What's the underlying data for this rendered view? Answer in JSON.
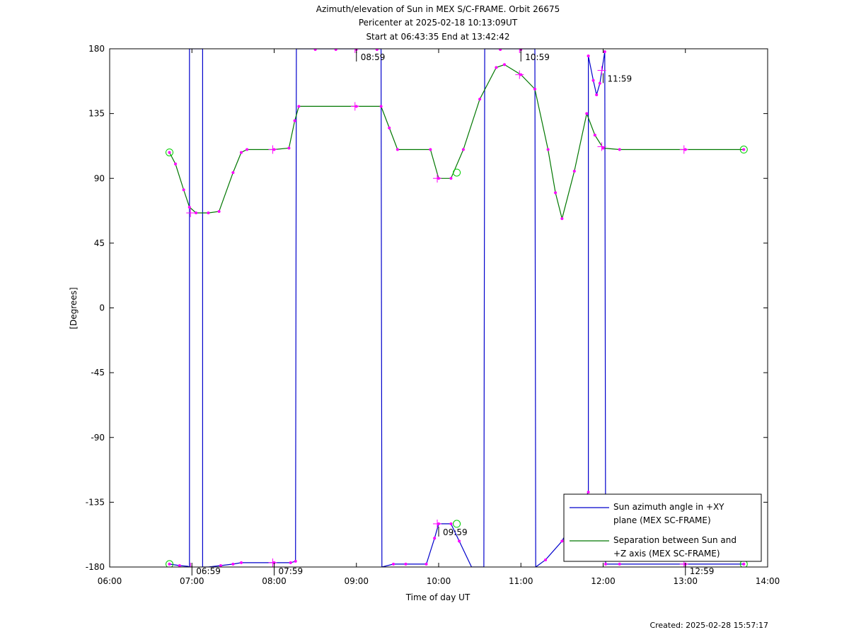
{
  "chart_data": {
    "type": "line",
    "title": "Azimuth/elevation of Sun in MEX S/C-FRAME.  Orbit 26675",
    "subtitle_1": "Pericenter at 2025-02-18 10:13:09UT",
    "subtitle_2": "Start at 06:43:35 End at 13:42:42",
    "xlabel": "Time of day UT",
    "ylabel": "[Degrees]",
    "xlim": [
      6.0,
      14.0
    ],
    "ylim": [
      -180,
      180
    ],
    "x_ticks": [
      6,
      7,
      8,
      9,
      10,
      11,
      12,
      13,
      14
    ],
    "x_tick_labels": [
      "06:00",
      "07:00",
      "08:00",
      "09:00",
      "10:00",
      "11:00",
      "12:00",
      "13:00",
      "14:00"
    ],
    "y_ticks": [
      180,
      135,
      90,
      45,
      0,
      -45,
      -90,
      -135,
      -180
    ],
    "y_tick_labels": [
      "180",
      "135",
      "90",
      "45",
      "0",
      "-45",
      "-90",
      "-135",
      "-180"
    ],
    "grid": false,
    "legend_position": "bottom-right",
    "colors": {
      "azimuth": "#0000cc",
      "separation": "#007700",
      "markers": "#ff00ff",
      "endpoints": "#00cc00"
    },
    "series": [
      {
        "name": "Sun azimuth angle in +XY plane (MEX SC-FRAME)",
        "legend_lines": [
          "Sun azimuth angle in +XY",
          "plane (MEX SC-FRAME)"
        ],
        "color": "#0000cc",
        "segments": [
          [
            [
              6.727,
              -178
            ],
            [
              6.85,
              -179
            ],
            [
              6.95,
              -179.5
            ],
            [
              6.97,
              -180
            ]
          ],
          [
            [
              6.97,
              180
            ],
            [
              7.13,
              180
            ]
          ],
          [
            [
              7.13,
              -180
            ],
            [
              7.2,
              -180
            ],
            [
              7.35,
              -179
            ],
            [
              7.5,
              -178
            ],
            [
              7.6,
              -177
            ],
            [
              8.0,
              -177
            ],
            [
              8.2,
              -177
            ],
            [
              8.26,
              -176
            ]
          ],
          [
            [
              8.27,
              180
            ],
            [
              9.3,
              180
            ]
          ],
          [
            [
              9.31,
              -180
            ],
            [
              9.45,
              -178
            ],
            [
              9.6,
              -178
            ],
            [
              9.85,
              -178
            ],
            [
              9.95,
              -160
            ],
            [
              10.0,
              -150
            ],
            [
              10.15,
              -150
            ],
            [
              10.25,
              -162
            ],
            [
              10.4,
              -180
            ],
            [
              10.55,
              -180
            ]
          ],
          [
            [
              10.56,
              180
            ],
            [
              11.17,
              180
            ]
          ],
          [
            [
              11.18,
              -180
            ],
            [
              11.3,
              -175
            ],
            [
              11.5,
              -162
            ],
            [
              11.7,
              -140
            ],
            [
              11.82,
              -128
            ]
          ],
          [
            [
              11.82,
              175
            ],
            [
              11.88,
              158
            ],
            [
              11.92,
              148
            ],
            [
              11.96,
              156
            ],
            [
              12.02,
              178
            ]
          ],
          [
            [
              12.03,
              -178
            ],
            [
              12.2,
              -178
            ],
            [
              13.0,
              -178
            ],
            [
              13.71,
              -178
            ]
          ]
        ]
      },
      {
        "name": "Separation between Sun and +Z axis (MEX SC-FRAME)",
        "legend_lines": [
          "Separation between Sun and",
          "+Z axis (MEX SC-FRAME)"
        ],
        "color": "#007700",
        "points": [
          [
            6.727,
            108
          ],
          [
            6.8,
            100
          ],
          [
            6.9,
            82
          ],
          [
            6.97,
            70
          ],
          [
            7.05,
            66
          ],
          [
            7.2,
            66
          ],
          [
            7.33,
            67
          ],
          [
            7.5,
            94
          ],
          [
            7.6,
            108
          ],
          [
            7.67,
            110
          ],
          [
            8.0,
            110
          ],
          [
            8.18,
            111
          ],
          [
            8.25,
            130
          ],
          [
            8.3,
            140
          ],
          [
            9.0,
            140
          ],
          [
            9.3,
            140
          ],
          [
            9.4,
            125
          ],
          [
            9.5,
            110
          ],
          [
            9.9,
            110
          ],
          [
            10.0,
            90
          ],
          [
            10.15,
            90
          ],
          [
            10.3,
            110
          ],
          [
            10.5,
            145
          ],
          [
            10.7,
            167
          ],
          [
            10.8,
            169
          ],
          [
            11.0,
            162
          ],
          [
            11.17,
            152
          ],
          [
            11.33,
            110
          ],
          [
            11.42,
            80
          ],
          [
            11.5,
            62
          ],
          [
            11.65,
            95
          ],
          [
            11.8,
            135
          ],
          [
            11.9,
            120
          ],
          [
            12.0,
            111
          ],
          [
            12.2,
            110
          ],
          [
            13.0,
            110
          ],
          [
            13.71,
            110
          ]
        ]
      }
    ],
    "time_annotations": [
      {
        "label": "06:59",
        "x": 6.983,
        "y": -180
      },
      {
        "label": "07:59",
        "x": 7.983,
        "y": -180
      },
      {
        "label": "08:59",
        "x": 8.983,
        "y": 180
      },
      {
        "label": "09:59",
        "x": 9.983,
        "y": -150
      },
      {
        "label": "10:59",
        "x": 10.983,
        "y": 180
      },
      {
        "label": "11:59",
        "x": 11.983,
        "y": 165
      },
      {
        "label": "12:59",
        "x": 12.983,
        "y": -180
      }
    ],
    "crosses": [
      [
        6.983,
        -180
      ],
      [
        7.983,
        -177
      ],
      [
        8.983,
        180
      ],
      [
        9.983,
        -150
      ],
      [
        10.983,
        180
      ],
      [
        11.983,
        165
      ],
      [
        12.983,
        -178
      ],
      [
        6.983,
        66
      ],
      [
        7.983,
        110
      ],
      [
        8.983,
        140
      ],
      [
        9.983,
        90
      ],
      [
        10.983,
        162
      ],
      [
        11.983,
        112
      ],
      [
        12.983,
        110
      ]
    ],
    "endpoints": [
      [
        6.727,
        -178
      ],
      [
        13.71,
        -178
      ],
      [
        6.727,
        108
      ],
      [
        13.71,
        110
      ],
      [
        10.22,
        94
      ],
      [
        10.22,
        -150
      ]
    ],
    "footer": "Created: 2025-02-28 15:57:17"
  }
}
